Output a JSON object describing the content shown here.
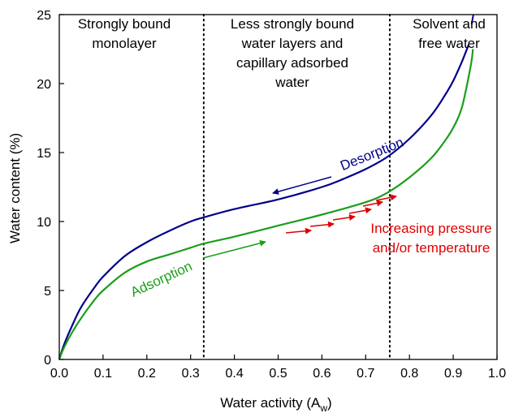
{
  "chart_data": {
    "type": "line",
    "title": "",
    "xlabel": "Water activity (A",
    "xlabel_sub": "w",
    "xlabel_close": ")",
    "ylabel": "Water content (%)",
    "xlim": [
      0.0,
      1.0
    ],
    "ylim": [
      0,
      25
    ],
    "x_ticks": [
      "0.0",
      "0.1",
      "0.2",
      "0.3",
      "0.4",
      "0.5",
      "0.6",
      "0.7",
      "0.8",
      "0.9",
      "1.0"
    ],
    "y_ticks": [
      "0",
      "5",
      "10",
      "15",
      "20",
      "25"
    ],
    "grid": false,
    "series": [
      {
        "name": "Desorption",
        "color": "#00008b",
        "x": [
          0.0,
          0.01,
          0.03,
          0.05,
          0.08,
          0.1,
          0.15,
          0.2,
          0.25,
          0.3,
          0.33,
          0.4,
          0.5,
          0.6,
          0.65,
          0.7,
          0.75,
          0.8,
          0.85,
          0.88,
          0.9,
          0.92,
          0.935
        ],
        "y": [
          0.0,
          1.0,
          2.5,
          3.8,
          5.2,
          6.0,
          7.5,
          8.5,
          9.3,
          10.0,
          10.3,
          10.9,
          11.6,
          12.5,
          13.1,
          13.8,
          14.7,
          16.0,
          17.7,
          19.1,
          20.2,
          21.6,
          22.8
        ]
      },
      {
        "name": "Adsorption",
        "color": "#1a9e1a",
        "x": [
          0.0,
          0.01,
          0.03,
          0.05,
          0.08,
          0.1,
          0.15,
          0.2,
          0.25,
          0.3,
          0.33,
          0.4,
          0.5,
          0.6,
          0.7,
          0.75,
          0.8,
          0.85,
          0.88,
          0.9,
          0.92,
          0.94,
          0.945
        ],
        "y": [
          0.0,
          0.8,
          2.0,
          3.0,
          4.3,
          5.0,
          6.3,
          7.1,
          7.6,
          8.1,
          8.4,
          8.9,
          9.7,
          10.5,
          11.4,
          12.1,
          13.2,
          14.6,
          15.8,
          16.8,
          18.3,
          21.3,
          22.5
        ]
      }
    ],
    "vlines": [
      0.33,
      0.755
    ],
    "regions": [
      {
        "lines": [
          "Strongly bound",
          "monolayer"
        ]
      },
      {
        "lines": [
          "Less strongly bound",
          "water layers and",
          "capillary adsorbed",
          "water"
        ]
      },
      {
        "lines": [
          "Solvent and",
          "free water"
        ]
      }
    ],
    "annotations": {
      "desorption": {
        "text": "Desorption",
        "color": "#00008b"
      },
      "adsorption": {
        "text": "Adsorption",
        "color": "#1a9e1a"
      },
      "pressure": {
        "lines": [
          "Increasing pressure",
          "and/or temperature"
        ],
        "color": "#e00000"
      }
    }
  }
}
